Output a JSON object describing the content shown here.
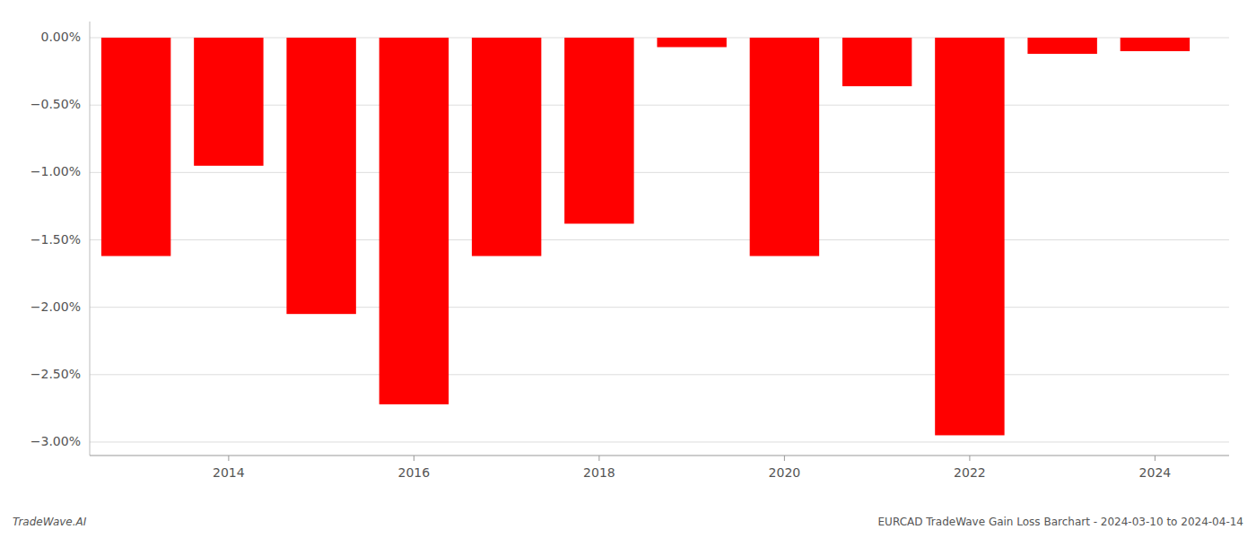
{
  "chart_data": {
    "type": "bar",
    "x": [
      2013,
      2014,
      2015,
      2016,
      2017,
      2018,
      2019,
      2020,
      2021,
      2022,
      2023,
      2024
    ],
    "values": [
      -1.62,
      -0.95,
      -2.05,
      -2.72,
      -1.62,
      -1.38,
      -0.07,
      -1.62,
      -0.36,
      -2.95,
      -0.12,
      -0.1
    ],
    "color": "#ff0000",
    "xlim": [
      2012.5,
      2024.8
    ],
    "xticks": [
      2014,
      2016,
      2018,
      2020,
      2022,
      2024
    ],
    "ylim": [
      -3.1,
      0.12
    ],
    "yticks": [
      {
        "value": 0.0,
        "label": "0.00%"
      },
      {
        "value": -0.5,
        "label": "−0.50%"
      },
      {
        "value": -1.0,
        "label": "−1.00%"
      },
      {
        "value": -1.5,
        "label": "−1.50%"
      },
      {
        "value": -2.0,
        "label": "−2.00%"
      },
      {
        "value": -2.5,
        "label": "−2.50%"
      },
      {
        "value": -3.0,
        "label": "−3.00%"
      }
    ],
    "grid": true,
    "annotations": [
      "TradeWave.AI",
      "EURCAD TradeWave Gain Loss Barchart - 2024-03-10 to 2024-04-14"
    ]
  }
}
